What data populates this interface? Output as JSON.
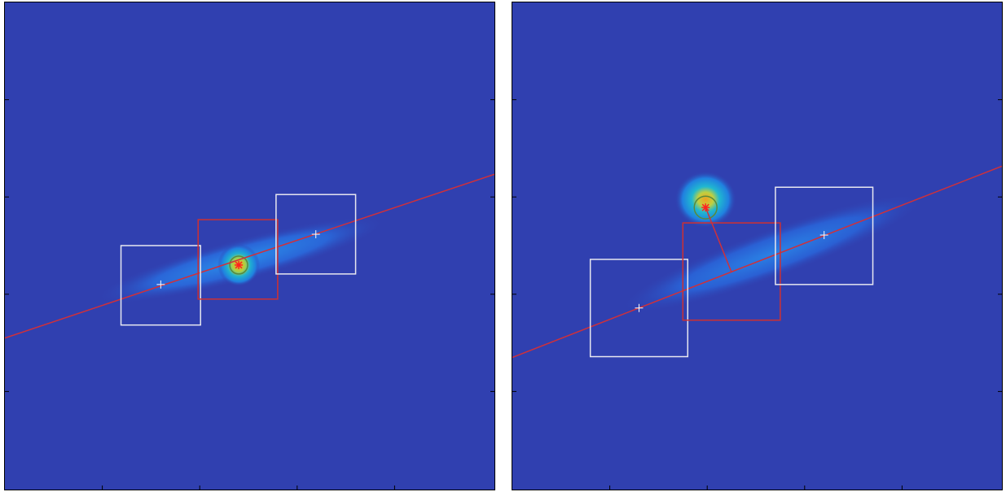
{
  "colors": {
    "background": "#3040b0",
    "line": "#d0303a",
    "center_box": "#d03030",
    "side_box": "#e8e8f0",
    "marker": "#ff2020",
    "circle_edge": "#5a8a3a"
  },
  "panels": [
    {
      "name": "left",
      "description_free": true
    },
    {
      "name": "right",
      "description_free": true
    }
  ]
}
